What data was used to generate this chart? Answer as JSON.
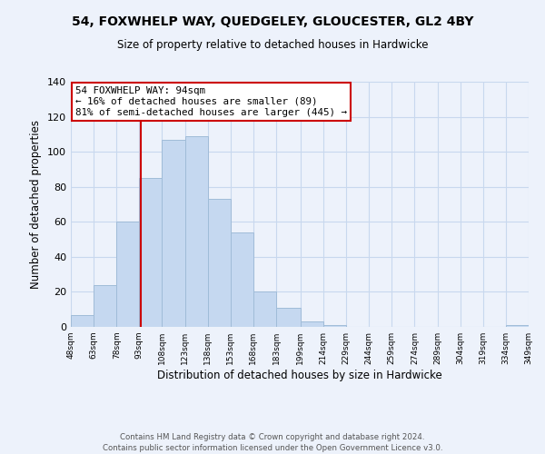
{
  "title": "54, FOXWHELP WAY, QUEDGELEY, GLOUCESTER, GL2 4BY",
  "subtitle": "Size of property relative to detached houses in Hardwicke",
  "xlabel": "Distribution of detached houses by size in Hardwicke",
  "ylabel": "Number of detached properties",
  "bar_edges": [
    48,
    63,
    78,
    93,
    108,
    123,
    138,
    153,
    168,
    183,
    199,
    214,
    229,
    244,
    259,
    274,
    289,
    304,
    319,
    334,
    349
  ],
  "bar_heights": [
    7,
    24,
    60,
    85,
    107,
    109,
    73,
    54,
    20,
    11,
    3,
    1,
    0,
    0,
    0,
    0,
    0,
    0,
    0,
    1
  ],
  "bar_color": "#c5d8f0",
  "bar_edge_color": "#a0bcd8",
  "property_line_x": 94,
  "annotation_line1": "54 FOXWHELP WAY: 94sqm",
  "annotation_line2": "← 16% of detached houses are smaller (89)",
  "annotation_line3": "81% of semi-detached houses are larger (445) →",
  "annotation_box_color": "#ffffff",
  "annotation_box_edge_color": "#cc0000",
  "property_line_color": "#cc0000",
  "ylim": [
    0,
    140
  ],
  "yticks": [
    0,
    20,
    40,
    60,
    80,
    100,
    120,
    140
  ],
  "tick_labels": [
    "48sqm",
    "63sqm",
    "78sqm",
    "93sqm",
    "108sqm",
    "123sqm",
    "138sqm",
    "153sqm",
    "168sqm",
    "183sqm",
    "199sqm",
    "214sqm",
    "229sqm",
    "244sqm",
    "259sqm",
    "274sqm",
    "289sqm",
    "304sqm",
    "319sqm",
    "334sqm",
    "349sqm"
  ],
  "footer1": "Contains HM Land Registry data © Crown copyright and database right 2024.",
  "footer2": "Contains public sector information licensed under the Open Government Licence v3.0.",
  "background_color": "#edf2fb",
  "grid_color": "#c8d8ee"
}
